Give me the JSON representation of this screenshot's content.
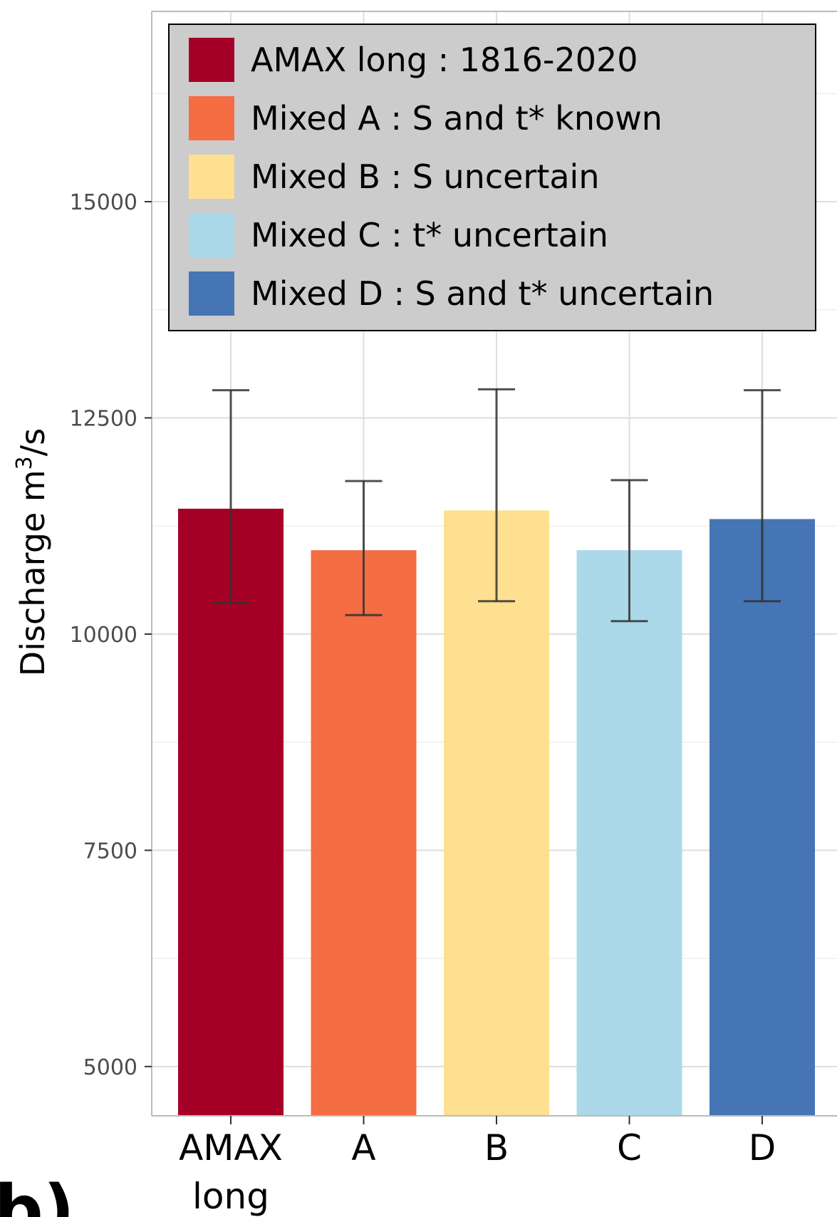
{
  "chart_data": {
    "type": "bar",
    "title": "",
    "xlabel": "",
    "ylabel": "Discharge m",
    "ylabel_sup": "3",
    "ylabel_suffix": "/s",
    "categories": [
      "AMAX long",
      "A",
      "B",
      "C",
      "D"
    ],
    "category_lines": [
      [
        "AMAX",
        "long"
      ],
      [
        "A"
      ],
      [
        "B"
      ],
      [
        "C"
      ],
      [
        "D"
      ]
    ],
    "values": [
      11450,
      10970,
      11430,
      10970,
      11330
    ],
    "error_low": [
      10360,
      10220,
      10380,
      10150,
      10380
    ],
    "error_high": [
      12820,
      11770,
      12830,
      11780,
      12820
    ],
    "colors": [
      "#A50026",
      "#F46D43",
      "#FEE090",
      "#ABD9E9",
      "#4575B4"
    ],
    "ylim": [
      4430,
      17200
    ],
    "yticks": [
      5000,
      7500,
      10000,
      12500,
      15000
    ],
    "grid": true,
    "legend_position": "top",
    "legend": [
      {
        "label": "AMAX long : 1816-2020",
        "color": "#A50026"
      },
      {
        "label": "Mixed A : S and t* known",
        "color": "#F46D43"
      },
      {
        "label": "Mixed B : S uncertain",
        "color": "#FEE090"
      },
      {
        "label": "Mixed C : t* uncertain",
        "color": "#ABD9E9"
      },
      {
        "label": "Mixed D : S and t* uncertain",
        "color": "#4575B4"
      }
    ]
  },
  "panel_label": "b)"
}
